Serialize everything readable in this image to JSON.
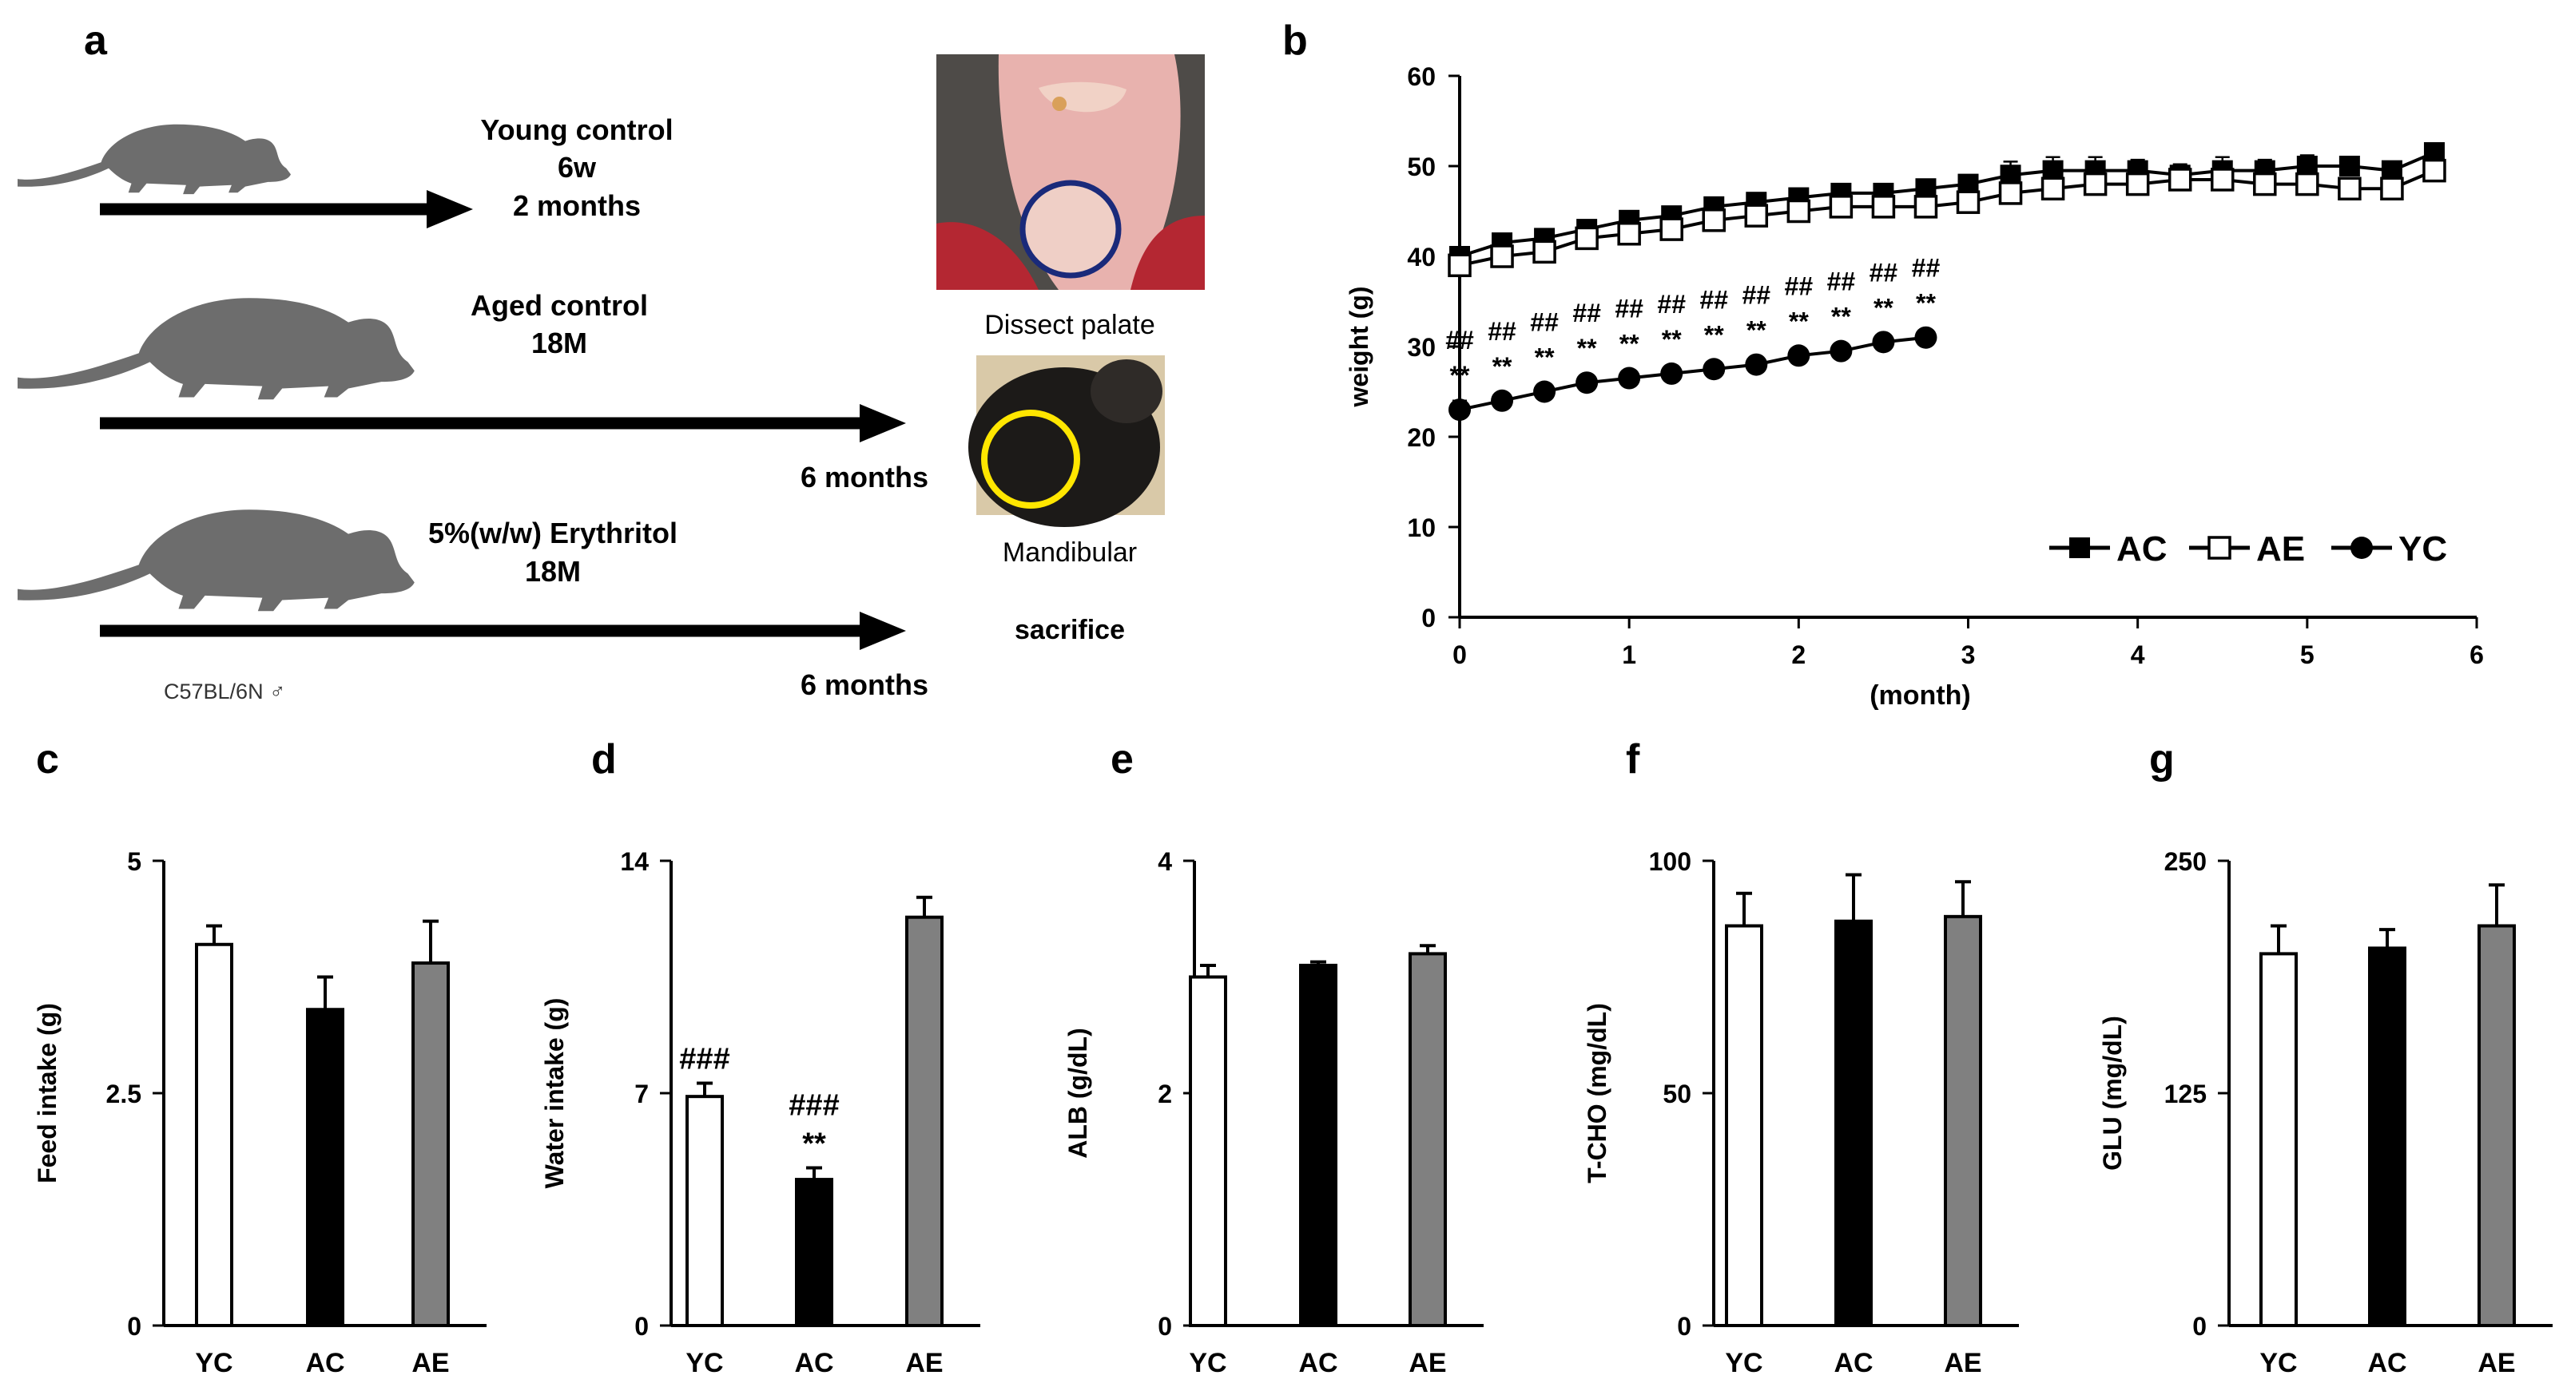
{
  "panels": {
    "a": {
      "letter": "a",
      "groups": [
        {
          "name": "Young control",
          "age": "6w",
          "duration": "2 months"
        },
        {
          "name": "Aged control",
          "age": "18M",
          "duration": "6 months"
        },
        {
          "name": "5%(w/w) Erythritol",
          "age": "18M",
          "duration": "6 months"
        }
      ],
      "strain": "C57BL/6N ♂",
      "images": [
        "Dissect palate",
        "Mandibular",
        "sacrifice"
      ],
      "colors": {
        "mouse": "#6d6d6d",
        "palate_circle": "#1a2a7a",
        "mandible_circle": "#ffe600"
      }
    },
    "b": {
      "letter": "b"
    },
    "c": {
      "letter": "c"
    },
    "d": {
      "letter": "d"
    },
    "e": {
      "letter": "e"
    },
    "f": {
      "letter": "f"
    },
    "g": {
      "letter": "g"
    }
  },
  "chart_data": [
    {
      "id": "b",
      "type": "line",
      "xlabel": "(month)",
      "ylabel": "weight (g)",
      "xlim": [
        0,
        6
      ],
      "ylim": [
        0,
        60
      ],
      "xticks": [
        "0",
        "1",
        "2",
        "3",
        "4",
        "5",
        "6"
      ],
      "yticks": [
        "0",
        "10",
        "20",
        "30",
        "40",
        "50",
        "60"
      ],
      "legend": [
        "AC",
        "AE",
        "YC"
      ],
      "legend_position": "bottom-right",
      "series": [
        {
          "name": "AC",
          "marker": "filled-square",
          "x": [
            0,
            0.25,
            0.5,
            0.75,
            1,
            1.25,
            1.5,
            1.75,
            2,
            2.25,
            2.5,
            2.75,
            3,
            3.25,
            3.5,
            3.75,
            4,
            4.25,
            4.5,
            4.75,
            5,
            5.25,
            5.5,
            5.75
          ],
          "y": [
            40,
            41.5,
            42,
            43,
            44,
            44.5,
            45.5,
            46,
            46.5,
            47,
            47,
            47.5,
            48,
            49,
            49.5,
            49.5,
            49.5,
            49,
            49.5,
            49.5,
            50,
            50,
            49.5,
            51.5
          ],
          "err": [
            1,
            1,
            0.8,
            0.8,
            0.8,
            0.8,
            0.8,
            0.8,
            0.8,
            0.8,
            0.8,
            0.8,
            1,
            1.5,
            1.5,
            1.5,
            1.2,
            1.2,
            1.5,
            1.2,
            1.2,
            1,
            1,
            1
          ]
        },
        {
          "name": "AE",
          "marker": "open-square",
          "x": [
            0,
            0.25,
            0.5,
            0.75,
            1,
            1.25,
            1.5,
            1.75,
            2,
            2.25,
            2.5,
            2.75,
            3,
            3.25,
            3.5,
            3.75,
            4,
            4.25,
            4.5,
            4.75,
            5,
            5.25,
            5.5,
            5.75
          ],
          "y": [
            39,
            40,
            40.5,
            42,
            42.5,
            43,
            44,
            44.5,
            45,
            45.5,
            45.5,
            45.5,
            46,
            47,
            47.5,
            48,
            48,
            48.5,
            48.5,
            48,
            48,
            47.5,
            47.5,
            49.5
          ],
          "err": [
            1,
            1,
            1,
            1,
            1,
            1,
            1,
            1,
            1,
            1,
            1,
            1,
            1,
            1.2,
            1.2,
            1.2,
            1.2,
            1.2,
            1.2,
            1.2,
            1.2,
            1.2,
            1.2,
            1
          ]
        },
        {
          "name": "YC",
          "marker": "filled-circle",
          "x": [
            0,
            0.25,
            0.5,
            0.75,
            1,
            1.25,
            1.5,
            1.75,
            2,
            2.25,
            2.5,
            2.75
          ],
          "y": [
            23,
            24,
            25,
            26,
            26.5,
            27,
            27.5,
            28,
            29,
            29.5,
            30.5,
            31
          ],
          "err": [
            1,
            0.8,
            0.8,
            0.8,
            0.8,
            0.8,
            0.8,
            0.8,
            0.8,
            0.8,
            0.8,
            0.8
          ]
        }
      ],
      "annotations": {
        "x": [
          0,
          0.25,
          0.5,
          0.75,
          1,
          1.25,
          1.5,
          1.75,
          2,
          2.25,
          2.5,
          2.75
        ],
        "hash": "##",
        "star": "**"
      }
    },
    {
      "id": "c",
      "type": "bar",
      "ylabel": "Feed intake (g)",
      "categories": [
        "YC",
        "AC",
        "AE"
      ],
      "values": [
        4.1,
        3.4,
        3.9
      ],
      "err": [
        0.2,
        0.35,
        0.45
      ],
      "ylim": [
        0,
        5
      ],
      "yticks": [
        0,
        2.5,
        5
      ],
      "ytick_labels": [
        "0",
        "2.5",
        "5"
      ],
      "fills": [
        "#ffffff",
        "#000000",
        "#808080"
      ],
      "annotations": []
    },
    {
      "id": "d",
      "type": "bar",
      "ylabel": "Water intake (g)",
      "categories": [
        "YC",
        "AC",
        "AE"
      ],
      "values": [
        6.9,
        4.4,
        12.3
      ],
      "err": [
        0.4,
        0.35,
        0.6
      ],
      "ylim": [
        0,
        14
      ],
      "yticks": [
        0,
        7,
        14
      ],
      "ytick_labels": [
        "0",
        "7",
        "14"
      ],
      "fills": [
        "#ffffff",
        "#000000",
        "#808080"
      ],
      "annotations": [
        {
          "bar": 0,
          "lines": [
            "###"
          ]
        },
        {
          "bar": 1,
          "lines": [
            "###",
            "**"
          ]
        }
      ]
    },
    {
      "id": "e",
      "type": "bar",
      "ylabel": "ALB (g/dL)",
      "categories": [
        "YC",
        "AC",
        "AE"
      ],
      "values": [
        3.0,
        3.1,
        3.2
      ],
      "err": [
        0.1,
        0.03,
        0.07
      ],
      "ylim": [
        0,
        4
      ],
      "yticks": [
        0,
        2,
        4
      ],
      "ytick_labels": [
        "0",
        "2",
        "4"
      ],
      "fills": [
        "#ffffff",
        "#000000",
        "#808080"
      ],
      "annotations": []
    },
    {
      "id": "f",
      "type": "bar",
      "ylabel": "T-CHO (mg/dL)",
      "categories": [
        "YC",
        "AC",
        "AE"
      ],
      "values": [
        86,
        87,
        88
      ],
      "err": [
        7,
        10,
        7.5
      ],
      "ylim": [
        0,
        100
      ],
      "yticks": [
        0,
        50,
        100
      ],
      "ytick_labels": [
        "0",
        "50",
        "100"
      ],
      "fills": [
        "#ffffff",
        "#000000",
        "#808080"
      ],
      "annotations": []
    },
    {
      "id": "g",
      "type": "bar",
      "ylabel": "GLU (mg/dL)",
      "categories": [
        "YC",
        "AC",
        "AE"
      ],
      "values": [
        200,
        203,
        215
      ],
      "err": [
        15,
        10,
        22
      ],
      "ylim": [
        0,
        250
      ],
      "yticks": [
        0,
        125,
        250
      ],
      "ytick_labels": [
        "0",
        "125",
        "250"
      ],
      "fills": [
        "#ffffff",
        "#000000",
        "#808080"
      ],
      "annotations": []
    }
  ]
}
